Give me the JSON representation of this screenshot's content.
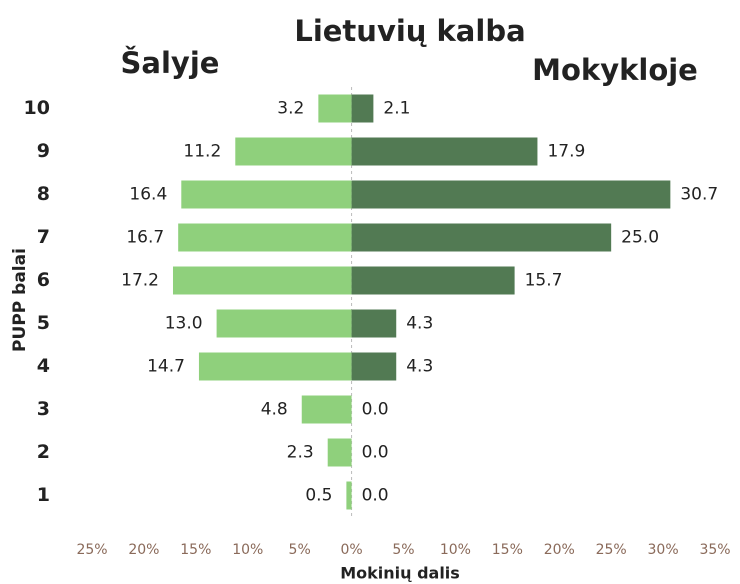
{
  "chart_data": {
    "type": "bar",
    "orientation": "horizontal",
    "title": "Lietuvių kalba",
    "ylabel": "PUPP balai",
    "xlabel": "Mokinių dalis",
    "categories": [
      "10",
      "9",
      "8",
      "7",
      "6",
      "5",
      "4",
      "3",
      "2",
      "1"
    ],
    "series": [
      {
        "name": "Šalyje",
        "color": "#8fd07c",
        "values": [
          -3.2,
          -11.2,
          -16.4,
          -16.7,
          -17.2,
          -13.0,
          -14.7,
          -4.8,
          -2.3,
          -0.5
        ],
        "value_labels": [
          "3.2",
          "11.2",
          "16.4",
          "16.7",
          "17.2",
          "13.0",
          "14.7",
          "4.8",
          "2.3",
          "0.5"
        ]
      },
      {
        "name": "Mokykloje",
        "color": "#527a53",
        "values": [
          2.1,
          17.9,
          30.7,
          25.0,
          15.7,
          4.3,
          4.3,
          0.0,
          0.0,
          0.0
        ],
        "value_labels": [
          "2.1",
          "17.9",
          "30.7",
          "25.0",
          "15.7",
          "4.3",
          "4.3",
          "0.0",
          "0.0",
          "0.0"
        ]
      }
    ],
    "xlim": [
      -25,
      35
    ],
    "xticks": [
      {
        "value": -25,
        "label": "25%"
      },
      {
        "value": -20,
        "label": "20%"
      },
      {
        "value": -15,
        "label": "15%"
      },
      {
        "value": -10,
        "label": "10%"
      },
      {
        "value": -5,
        "label": "5%"
      },
      {
        "value": 0,
        "label": "0%"
      },
      {
        "value": 5,
        "label": "5%"
      },
      {
        "value": 10,
        "label": "10%"
      },
      {
        "value": 15,
        "label": "15%"
      },
      {
        "value": 20,
        "label": "20%"
      },
      {
        "value": 25,
        "label": "25%"
      },
      {
        "value": 30,
        "label": "30%"
      },
      {
        "value": 35,
        "label": "35%"
      }
    ],
    "grid": false
  }
}
